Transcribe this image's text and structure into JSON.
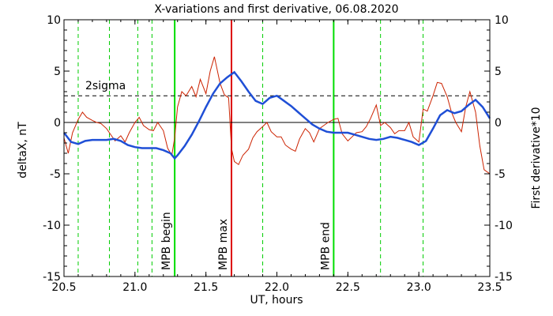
{
  "chart_data": {
    "type": "line",
    "title": "X-variations and first derivative, 06.08.2020",
    "xlabel": "UT, hours",
    "ylabel_left": "deltaX, nT",
    "ylabel_right": "First derivative*10",
    "xlim": [
      20.5,
      23.5
    ],
    "ylim": [
      -15,
      10
    ],
    "x_ticks": [
      20.5,
      21.0,
      21.5,
      22.0,
      22.5,
      23.0,
      23.5
    ],
    "x_tick_labels": [
      "20.5",
      "21.0",
      "21.5",
      "22.0",
      "22.5",
      "23.0",
      "23.5"
    ],
    "y_ticks": [
      -15,
      -10,
      -5,
      0,
      5,
      10
    ],
    "y_tick_labels": [
      "-15",
      "-10",
      "-5",
      "0",
      "5",
      "10"
    ],
    "sigma_level": 2.6,
    "sigma_label": "2sigma",
    "grid": false,
    "colors": {
      "deltaX": "#1f4fd6",
      "derivative": "#cc2200",
      "mpb": "#00dd00",
      "mpb_max": "#dd0000",
      "dashed_green": "#00cc00",
      "left_axis_label": "#1f4fd6",
      "right_axis_label": "#cc2200"
    },
    "dashed_markers": [
      20.6,
      20.82,
      21.02,
      21.12,
      21.9,
      22.73,
      23.03
    ],
    "vertical_markers": [
      {
        "x": 21.28,
        "label": "MPB begin",
        "color": "#00dd00"
      },
      {
        "x": 21.68,
        "label": "MPB max",
        "color": "#dd0000"
      },
      {
        "x": 22.4,
        "label": "MPB end",
        "color": "#00dd00"
      }
    ],
    "series": [
      {
        "key": "deltaX",
        "x": [
          20.5,
          20.55,
          20.6,
          20.65,
          20.7,
          20.75,
          20.8,
          20.85,
          20.9,
          20.95,
          21.0,
          21.05,
          21.1,
          21.15,
          21.2,
          21.25,
          21.28,
          21.3,
          21.35,
          21.4,
          21.45,
          21.5,
          21.55,
          21.6,
          21.65,
          21.7,
          21.75,
          21.8,
          21.85,
          21.9,
          21.95,
          22.0,
          22.05,
          22.1,
          22.15,
          22.2,
          22.25,
          22.3,
          22.35,
          22.4,
          22.45,
          22.5,
          22.55,
          22.6,
          22.65,
          22.7,
          22.75,
          22.8,
          22.85,
          22.9,
          22.95,
          23.0,
          23.05,
          23.1,
          23.15,
          23.2,
          23.25,
          23.3,
          23.35,
          23.4,
          23.45,
          23.5
        ],
        "y": [
          -1.0,
          -1.9,
          -2.1,
          -1.8,
          -1.7,
          -1.7,
          -1.7,
          -1.6,
          -1.8,
          -2.2,
          -2.4,
          -2.5,
          -2.5,
          -2.5,
          -2.7,
          -3.0,
          -3.5,
          -3.2,
          -2.3,
          -1.2,
          0.1,
          1.5,
          2.8,
          3.8,
          4.4,
          4.9,
          4.0,
          3.0,
          2.1,
          1.8,
          2.4,
          2.6,
          2.1,
          1.6,
          1.0,
          0.4,
          -0.2,
          -0.6,
          -0.9,
          -1.0,
          -1.0,
          -1.0,
          -1.2,
          -1.4,
          -1.6,
          -1.7,
          -1.6,
          -1.4,
          -1.5,
          -1.7,
          -1.9,
          -2.2,
          -1.8,
          -0.6,
          0.7,
          1.2,
          0.9,
          1.1,
          1.7,
          2.2,
          1.5,
          0.4
        ]
      },
      {
        "key": "derivative",
        "x": [
          20.5,
          20.53,
          20.56,
          20.6,
          20.63,
          20.66,
          20.7,
          20.73,
          20.76,
          20.8,
          20.83,
          20.86,
          20.9,
          20.93,
          20.96,
          21.0,
          21.03,
          21.06,
          21.1,
          21.13,
          21.16,
          21.2,
          21.23,
          21.26,
          21.28,
          21.3,
          21.33,
          21.36,
          21.4,
          21.43,
          21.46,
          21.5,
          21.53,
          21.56,
          21.6,
          21.63,
          21.66,
          21.68,
          21.7,
          21.73,
          21.76,
          21.8,
          21.83,
          21.86,
          21.9,
          21.93,
          21.96,
          22.0,
          22.03,
          22.06,
          22.1,
          22.13,
          22.16,
          22.2,
          22.23,
          22.26,
          22.3,
          22.33,
          22.36,
          22.4,
          22.43,
          22.46,
          22.5,
          22.53,
          22.56,
          22.6,
          22.63,
          22.66,
          22.7,
          22.73,
          22.76,
          22.8,
          22.83,
          22.86,
          22.9,
          22.93,
          22.96,
          23.0,
          23.03,
          23.06,
          23.1,
          23.13,
          23.16,
          23.2,
          23.23,
          23.26,
          23.3,
          23.33,
          23.36,
          23.4,
          23.43,
          23.46,
          23.5
        ],
        "y": [
          -1.5,
          -3.0,
          -1.0,
          0.3,
          1.0,
          0.5,
          0.2,
          0.0,
          -0.1,
          -0.6,
          -1.2,
          -1.8,
          -1.3,
          -1.9,
          -1.0,
          0.0,
          0.5,
          -0.3,
          -0.7,
          -0.8,
          0.0,
          -0.8,
          -2.5,
          -3.2,
          -1.5,
          1.5,
          3.0,
          2.6,
          3.5,
          2.5,
          4.2,
          2.8,
          5.0,
          6.4,
          3.8,
          2.7,
          2.4,
          -2.5,
          -3.8,
          -4.1,
          -3.2,
          -2.6,
          -1.5,
          -0.9,
          -0.4,
          0.0,
          -0.9,
          -1.4,
          -1.4,
          -2.2,
          -2.6,
          -2.8,
          -1.6,
          -0.6,
          -1.0,
          -1.9,
          -0.6,
          -0.3,
          0.0,
          0.3,
          0.4,
          -1.1,
          -1.8,
          -1.4,
          -1.0,
          -0.9,
          -0.4,
          0.4,
          1.7,
          -0.3,
          0.0,
          -0.5,
          -1.1,
          -0.8,
          -0.8,
          0.0,
          -1.4,
          -1.9,
          1.3,
          1.1,
          2.6,
          3.9,
          3.8,
          2.5,
          1.0,
          0.0,
          -0.9,
          1.5,
          3.0,
          1.0,
          -2.3,
          -4.6,
          -5.0
        ]
      }
    ]
  }
}
